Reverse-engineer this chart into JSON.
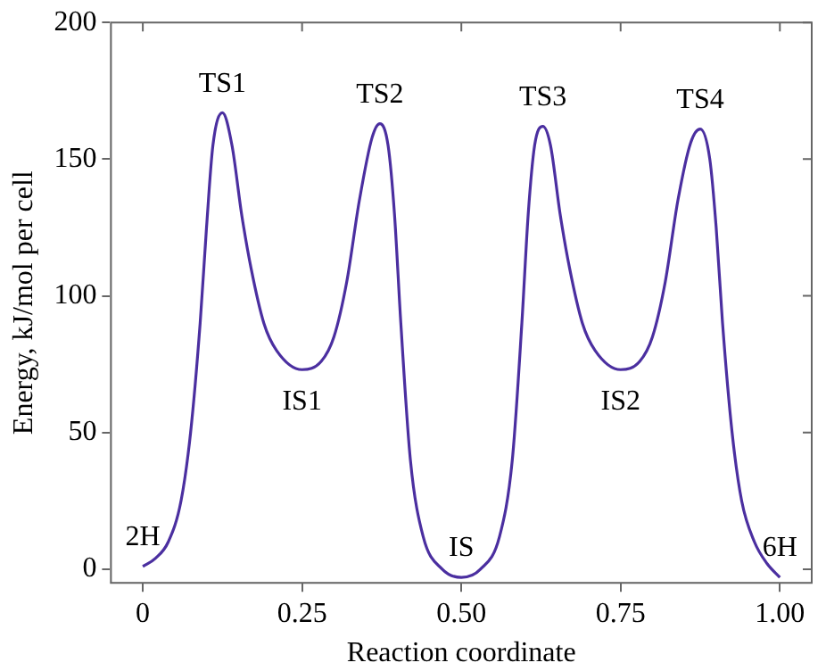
{
  "chart_data": {
    "type": "line",
    "xlabel": "Reaction coordinate",
    "ylabel": "Energy, kJ/mol per cell",
    "xlim": [
      -0.05,
      1.05
    ],
    "ylim": [
      -5,
      200
    ],
    "xticks": [
      0,
      0.25,
      {
        "value": 0.5,
        "label": "0.50"
      },
      0.75,
      {
        "value": 1,
        "label": "1.00"
      }
    ],
    "yticks": [
      0,
      50,
      100,
      150,
      200
    ],
    "grid": false,
    "legend": false,
    "marker": "none",
    "line_style": "solid",
    "series": [
      {
        "color": "#4b2fa0",
        "x": [
          0,
          0.02,
          0.04,
          0.06,
          0.075,
          0.09,
          0.1,
          0.11,
          0.125,
          0.14,
          0.155,
          0.17,
          0.19,
          0.21,
          0.25,
          0.28,
          0.3,
          0.32,
          0.34,
          0.36,
          0.372,
          0.385,
          0.395,
          0.405,
          0.42,
          0.44,
          0.47,
          0.5,
          0.53,
          0.56,
          0.58,
          0.595,
          0.605,
          0.615,
          0.628,
          0.64,
          0.655,
          0.67,
          0.69,
          0.71,
          0.75,
          0.78,
          0.8,
          0.82,
          0.84,
          0.86,
          0.875,
          0.89,
          0.9,
          0.91,
          0.925,
          0.94,
          0.96,
          0.98,
          1.0
        ],
        "values": [
          1,
          4,
          10,
          25,
          50,
          90,
          125,
          155,
          167,
          155,
          130,
          110,
          90,
          80,
          73,
          76,
          85,
          105,
          135,
          158,
          163,
          155,
          130,
          90,
          40,
          12,
          0,
          -3,
          0,
          12,
          40,
          90,
          130,
          155,
          162,
          155,
          130,
          110,
          90,
          80,
          73,
          76,
          85,
          105,
          135,
          156,
          161,
          150,
          125,
          90,
          50,
          25,
          10,
          2,
          -3
        ]
      }
    ],
    "annotations": [
      {
        "text": "TS1",
        "x": 0.125,
        "y": 167
      },
      {
        "text": "TS2",
        "x": 0.372,
        "y": 163
      },
      {
        "text": "TS3",
        "x": 0.628,
        "y": 162
      },
      {
        "text": "TS4",
        "x": 0.875,
        "y": 161
      },
      {
        "text": "IS1",
        "x": 0.25,
        "y": 73
      },
      {
        "text": "IS2",
        "x": 0.75,
        "y": 73
      },
      {
        "text": "IS",
        "x": 0.5,
        "y": -3
      },
      {
        "text": "2H",
        "x": 0,
        "y": 1
      },
      {
        "text": "6H",
        "x": 1,
        "y": -3
      }
    ]
  }
}
